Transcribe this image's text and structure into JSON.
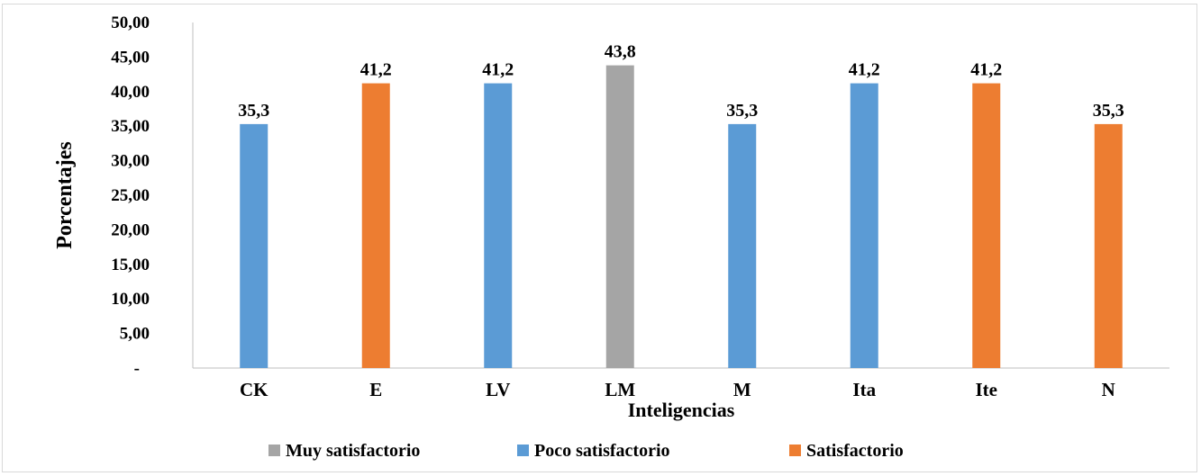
{
  "chart_data": {
    "type": "bar",
    "title": "",
    "xlabel": "Inteligencias",
    "ylabel": "Porcentajes",
    "ylim": [
      0,
      50
    ],
    "y_ticks": [
      {
        "value": 0,
        "label": "-"
      },
      {
        "value": 5,
        "label": "5,00"
      },
      {
        "value": 10,
        "label": "10,00"
      },
      {
        "value": 15,
        "label": "15,00"
      },
      {
        "value": 20,
        "label": "20,00"
      },
      {
        "value": 25,
        "label": "25,00"
      },
      {
        "value": 30,
        "label": "30,00"
      },
      {
        "value": 35,
        "label": "35,00"
      },
      {
        "value": 40,
        "label": "40,00"
      },
      {
        "value": 45,
        "label": "45,00"
      },
      {
        "value": 50,
        "label": "50,00"
      }
    ],
    "grid": false,
    "legend_position": "bottom",
    "categories": [
      "CK",
      "E",
      "LV",
      "LM",
      "M",
      "Ita",
      "Ite",
      "N"
    ],
    "series": [
      {
        "name": "Muy satisfactorio",
        "color": "#a5a5a5",
        "values": [
          null,
          null,
          null,
          43.8,
          null,
          null,
          null,
          null
        ],
        "labels": [
          null,
          null,
          null,
          "43,8",
          null,
          null,
          null,
          null
        ]
      },
      {
        "name": "Poco satisfactorio",
        "color": "#5b9bd5",
        "values": [
          35.3,
          null,
          41.2,
          null,
          35.3,
          41.2,
          null,
          null
        ],
        "labels": [
          "35,3",
          null,
          "41,2",
          null,
          "35,3",
          "41,2",
          null,
          null
        ]
      },
      {
        "name": "Satisfactorio",
        "color": "#ed7d31",
        "values": [
          null,
          41.2,
          null,
          null,
          null,
          null,
          41.2,
          35.3
        ],
        "labels": [
          null,
          "41,2",
          null,
          null,
          null,
          null,
          "41,2",
          "35,3"
        ]
      }
    ]
  }
}
